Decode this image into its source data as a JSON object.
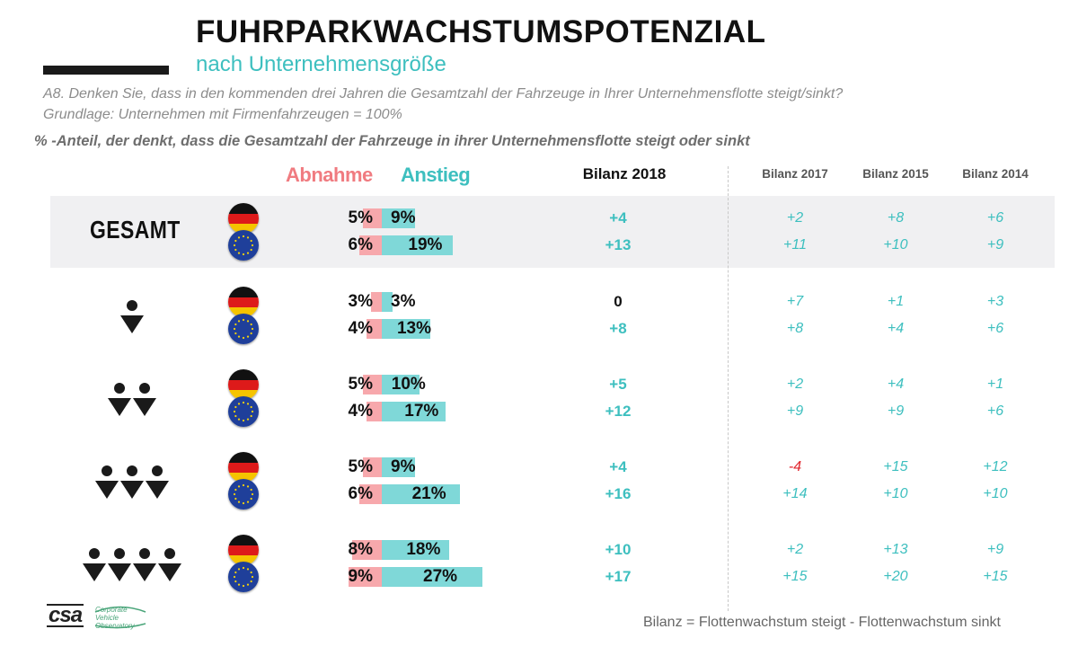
{
  "header": {
    "title": "FUHRPARKWACHSTUMSPOTENZIAL",
    "subtitle": "nach Unternehmensgröße",
    "question": "A8. Denken Sie, dass in den kommenden drei Jahren die Gesamtzahl der Fahrzeuge in Ihrer Unternehmensflotte steigt/sinkt?",
    "base": "Grundlage: Unternehmen mit Firmenfahrzeugen = 100%",
    "note": "% -Anteil, der denkt, dass die Gesamtzahl der Fahrzeuge in ihrer Unternehmensflotte steigt oder sinkt"
  },
  "legend": {
    "decrease": "Abnahme",
    "increase": "Anstieg"
  },
  "columns": {
    "bilanz_2018": "Bilanz 2018",
    "bilanz_2017": "Bilanz 2017",
    "bilanz_2015": "Bilanz 2015",
    "bilanz_2014": "Bilanz 2014"
  },
  "groups": [
    {
      "label": "GESAMT",
      "icon": "gesamt-label",
      "people": 0
    },
    {
      "label": "",
      "icon": "person-icon",
      "people": 1
    },
    {
      "label": "",
      "icon": "two-persons-icon",
      "people": 2
    },
    {
      "label": "",
      "icon": "three-persons-icon",
      "people": 3
    },
    {
      "label": "",
      "icon": "four-persons-icon",
      "people": 4
    }
  ],
  "colors": {
    "decrease": "#f7a8ac",
    "increase": "#7fd8d8",
    "teal_text": "#3dbfbf",
    "negative": "#e0242c",
    "gesamt_bg": "#f0f0f2"
  },
  "chart_data": {
    "type": "bar",
    "series": [
      {
        "name": "Abnahme",
        "values": [
          5,
          6,
          3,
          4,
          5,
          4,
          5,
          6,
          8,
          9
        ]
      },
      {
        "name": "Anstieg",
        "values": [
          9,
          19,
          3,
          13,
          10,
          17,
          9,
          21,
          18,
          27
        ]
      }
    ],
    "rows": [
      {
        "group": 0,
        "region": "germany-flag-icon",
        "dec": 5,
        "inc": 9,
        "dec_label": "5%",
        "inc_label": "9%",
        "b2018": "+4",
        "b2017": "+2",
        "b2015": "+8",
        "b2014": "+6"
      },
      {
        "group": 0,
        "region": "eu-flag-icon",
        "dec": 6,
        "inc": 19,
        "dec_label": "6%",
        "inc_label": "19%",
        "b2018": "+13",
        "b2017": "+11",
        "b2015": "+10",
        "b2014": "+9"
      },
      {
        "group": 1,
        "region": "germany-flag-icon",
        "dec": 3,
        "inc": 3,
        "dec_label": "3%",
        "inc_label": "3%",
        "b2018": "0",
        "b2017": "+7",
        "b2015": "+1",
        "b2014": "+3"
      },
      {
        "group": 1,
        "region": "eu-flag-icon",
        "dec": 4,
        "inc": 13,
        "dec_label": "4%",
        "inc_label": "13%",
        "b2018": "+8",
        "b2017": "+8",
        "b2015": "+4",
        "b2014": "+6"
      },
      {
        "group": 2,
        "region": "germany-flag-icon",
        "dec": 5,
        "inc": 10,
        "dec_label": "5%",
        "inc_label": "10%",
        "b2018": "+5",
        "b2017": "+2",
        "b2015": "+4",
        "b2014": "+1"
      },
      {
        "group": 2,
        "region": "eu-flag-icon",
        "dec": 4,
        "inc": 17,
        "dec_label": "4%",
        "inc_label": "17%",
        "b2018": "+12",
        "b2017": "+9",
        "b2015": "+9",
        "b2014": "+6"
      },
      {
        "group": 3,
        "region": "germany-flag-icon",
        "dec": 5,
        "inc": 9,
        "dec_label": "5%",
        "inc_label": "9%",
        "b2018": "+4",
        "b2017": "-4",
        "b2015": "+15",
        "b2014": "+12"
      },
      {
        "group": 3,
        "region": "eu-flag-icon",
        "dec": 6,
        "inc": 21,
        "dec_label": "6%",
        "inc_label": "21%",
        "b2018": "+16",
        "b2017": "+14",
        "b2015": "+10",
        "b2014": "+10"
      },
      {
        "group": 4,
        "region": "germany-flag-icon",
        "dec": 8,
        "inc": 18,
        "dec_label": "8%",
        "inc_label": "18%",
        "b2018": "+10",
        "b2017": "+2",
        "b2015": "+13",
        "b2014": "+9"
      },
      {
        "group": 4,
        "region": "eu-flag-icon",
        "dec": 9,
        "inc": 27,
        "dec_label": "9%",
        "inc_label": "27%",
        "b2018": "+17",
        "b2017": "+15",
        "b2015": "+20",
        "b2014": "+15"
      }
    ]
  },
  "footer": {
    "logo_csa": "csa",
    "logo_cvo": "Corporate Vehicle Observatory",
    "formula": "Bilanz = Flottenwachstum steigt - Flottenwachstum sinkt"
  }
}
